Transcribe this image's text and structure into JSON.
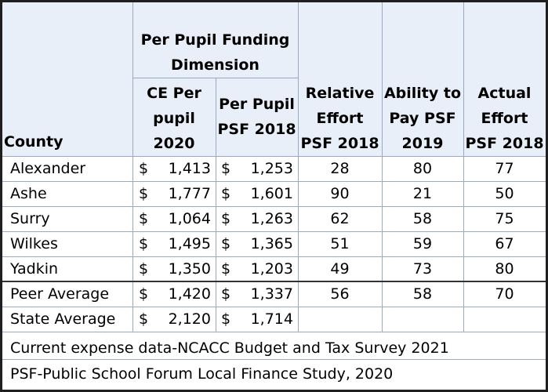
{
  "table": {
    "headers": {
      "county": "County",
      "group": "Per Pupil Funding\nDimension",
      "ce": "CE Per\npupil\n2020",
      "psf": "Per Pupil\nPSF 2018",
      "relative": "Relative\nEffort\nPSF 2018",
      "ability": "Ability to\nPay PSF\n2019",
      "actual": "Actual\nEffort\nPSF 2018"
    },
    "rows": [
      {
        "county": "Alexander",
        "ce": "1,413",
        "psf": "1,253",
        "relative": "28",
        "ability": "80",
        "actual": "77"
      },
      {
        "county": "Ashe",
        "ce": "1,777",
        "psf": "1,601",
        "relative": "90",
        "ability": "21",
        "actual": "50"
      },
      {
        "county": "Surry",
        "ce": "1,064",
        "psf": "1,263",
        "relative": "62",
        "ability": "58",
        "actual": "75"
      },
      {
        "county": "Wilkes",
        "ce": "1,495",
        "psf": "1,365",
        "relative": "51",
        "ability": "59",
        "actual": "67"
      },
      {
        "county": "Yadkin",
        "ce": "1,350",
        "psf": "1,203",
        "relative": "49",
        "ability": "73",
        "actual": "80"
      },
      {
        "county": "Peer Average",
        "ce": "1,420",
        "psf": "1,337",
        "relative": "56",
        "ability": "58",
        "actual": "70"
      },
      {
        "county": "State Average",
        "ce": "2,120",
        "psf": "1,714",
        "relative": "",
        "ability": "",
        "actual": ""
      }
    ],
    "currency_symbol": "$",
    "footnotes": [
      "Current expense data-NCACC Budget and Tax Survey 2021",
      "PSF-Public School Forum Local Finance Study, 2020"
    ]
  }
}
